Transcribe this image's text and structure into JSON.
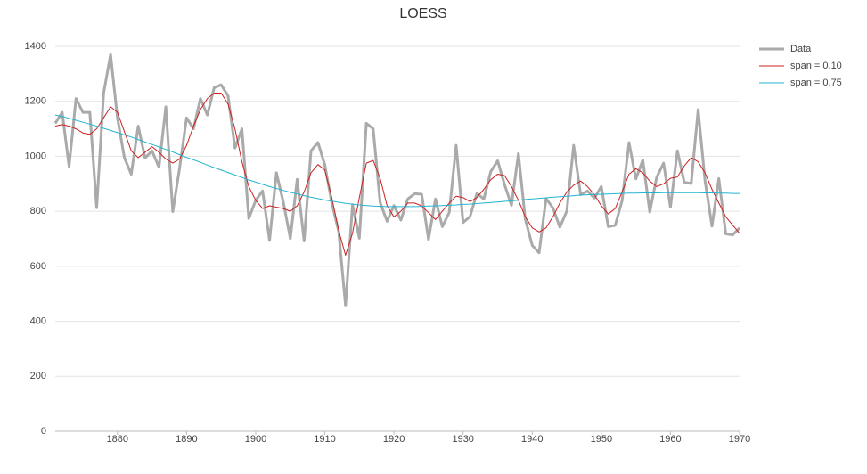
{
  "chart_data": {
    "type": "line",
    "title": "LOESS",
    "x": [
      1871,
      1872,
      1873,
      1874,
      1875,
      1876,
      1877,
      1878,
      1879,
      1880,
      1881,
      1882,
      1883,
      1884,
      1885,
      1886,
      1887,
      1888,
      1889,
      1890,
      1891,
      1892,
      1893,
      1894,
      1895,
      1896,
      1897,
      1898,
      1899,
      1900,
      1901,
      1902,
      1903,
      1904,
      1905,
      1906,
      1907,
      1908,
      1909,
      1910,
      1911,
      1912,
      1913,
      1914,
      1915,
      1916,
      1917,
      1918,
      1919,
      1920,
      1921,
      1922,
      1923,
      1924,
      1925,
      1926,
      1927,
      1928,
      1929,
      1930,
      1931,
      1932,
      1933,
      1934,
      1935,
      1936,
      1937,
      1938,
      1939,
      1940,
      1941,
      1942,
      1943,
      1944,
      1945,
      1946,
      1947,
      1948,
      1949,
      1950,
      1951,
      1952,
      1953,
      1954,
      1955,
      1956,
      1957,
      1958,
      1959,
      1960,
      1961,
      1962,
      1963,
      1964,
      1965,
      1966,
      1967,
      1968,
      1969,
      1970
    ],
    "series": [
      {
        "name": "Data",
        "color": "#aaaaaa",
        "width": 3,
        "values": [
          1120,
          1160,
          963,
          1210,
          1160,
          1160,
          813,
          1230,
          1370,
          1140,
          995,
          935,
          1110,
          994,
          1020,
          960,
          1180,
          799,
          958,
          1140,
          1100,
          1210,
          1150,
          1250,
          1260,
          1220,
          1030,
          1100,
          774,
          840,
          874,
          694,
          940,
          833,
          701,
          916,
          692,
          1020,
          1050,
          969,
          831,
          726,
          456,
          824,
          702,
          1120,
          1100,
          832,
          764,
          821,
          768,
          845,
          864,
          862,
          698,
          845,
          744,
          796,
          1040,
          759,
          781,
          865,
          845,
          944,
          984,
          897,
          822,
          1010,
          771,
          676,
          649,
          846,
          812,
          742,
          801,
          1040,
          860,
          874,
          848,
          890,
          744,
          749,
          838,
          1050,
          918,
          986,
          797,
          923,
          975,
          815,
          1020,
          906,
          901,
          1170,
          912,
          746,
          919,
          718,
          714,
          740
        ]
      },
      {
        "name": "span = 0.10",
        "color": "#cc2222",
        "width": 1,
        "values": [
          1110,
          1115,
          1110,
          1100,
          1085,
          1080,
          1100,
          1140,
          1180,
          1160,
          1090,
          1020,
          995,
          1015,
          1035,
          1015,
          990,
          975,
          990,
          1040,
          1110,
          1170,
          1210,
          1230,
          1230,
          1190,
          1100,
          980,
          890,
          840,
          810,
          820,
          815,
          810,
          800,
          820,
          870,
          940,
          970,
          950,
          850,
          730,
          640,
          720,
          850,
          975,
          985,
          920,
          820,
          780,
          800,
          830,
          830,
          820,
          795,
          770,
          800,
          830,
          855,
          850,
          835,
          850,
          880,
          915,
          935,
          930,
          890,
          840,
          780,
          740,
          725,
          740,
          780,
          830,
          870,
          895,
          910,
          890,
          860,
          820,
          790,
          810,
          870,
          935,
          955,
          940,
          910,
          890,
          900,
          920,
          925,
          965,
          995,
          980,
          940,
          880,
          830,
          780,
          750,
          720
        ]
      },
      {
        "name": "span = 0.75",
        "color": "#22b5d0",
        "width": 1,
        "values": [
          1150,
          1145,
          1138,
          1131,
          1124,
          1117,
          1110,
          1102,
          1094,
          1086,
          1078,
          1070,
          1061,
          1052,
          1043,
          1034,
          1025,
          1016,
          1006,
          996,
          987,
          978,
          968,
          959,
          950,
          941,
          932,
          923,
          914,
          906,
          898,
          890,
          883,
          876,
          869,
          863,
          857,
          851,
          846,
          841,
          837,
          833,
          829,
          826,
          823,
          821,
          819,
          818,
          817,
          817,
          817,
          817,
          817,
          818,
          819,
          820,
          821,
          822,
          823,
          825,
          826,
          828,
          830,
          832,
          834,
          836,
          838,
          840,
          843,
          845,
          847,
          849,
          851,
          853,
          855,
          857,
          859,
          860,
          861,
          862,
          863,
          864,
          865,
          866,
          866,
          867,
          867,
          867,
          868,
          868,
          868,
          868,
          868,
          868,
          867,
          867,
          866,
          866,
          865,
          865
        ]
      }
    ],
    "xlim": [
      1871,
      1970
    ],
    "xticks": [
      1880,
      1890,
      1900,
      1910,
      1920,
      1930,
      1940,
      1950,
      1960,
      1970
    ],
    "ylim": [
      0,
      1400
    ],
    "yticks": [
      0,
      200,
      400,
      600,
      800,
      1000,
      1200,
      1400
    ],
    "grid": true,
    "legend": "right"
  }
}
